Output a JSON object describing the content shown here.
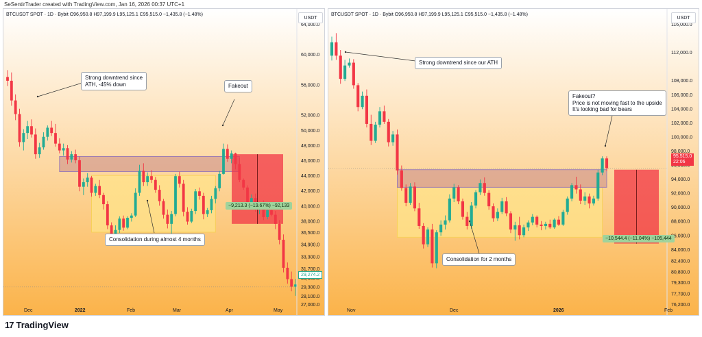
{
  "credit": "SeSentirTrader created with TradingView.com, Jan 16, 2026 00:37 UTC+1",
  "brand": "TradingView",
  "colors": {
    "up": "#22ab94",
    "down": "#f23645",
    "bg_top": "#ffffff",
    "bg_bottom": "#fbb34a",
    "zone": "#c98b8b",
    "consol": "#ffe38a",
    "measure": "#f23645"
  },
  "charts": [
    {
      "symbol_line": "BTCUSDT SPOT · 1D · Bybit  O96,950.8  H97,199.9  L95,125.1  C95,515.0  −1,435.8 (−1.48%)",
      "currency": "USDT",
      "y_ticks": [
        "64,000.0",
        "60,000.0",
        "56,000.0",
        "52,000.0",
        "50,000.0",
        "48,000.0",
        "46,000.0",
        "44,000.0",
        "42,000.0",
        "40,000.0",
        "38,000.0",
        "36,500.0",
        "34,900.0",
        "33,300.0",
        "31,700.0",
        "30,500.0",
        "29,300.0",
        "28,100.0",
        "27,000.0"
      ],
      "x_ticks": [
        "Dec",
        "2022",
        "Feb",
        "Mar",
        "Apr",
        "May"
      ],
      "annotations": {
        "downtrend": "Strong downtrend since\nATH, -45% down",
        "fakeout": "Fakeout",
        "consolidation": "Consolidation during almost 4 months"
      },
      "measure_label": "−9,213.3 (−19.67%) −92,133",
      "last_price": "29,274.2"
    },
    {
      "symbol_line": "BTCUSDT SPOT · 1D · Bybit  O96,950.8  H97,199.9  L95,125.1  C95,515.0  −1,435.8 (−1.48%)",
      "currency": "USDT",
      "y_ticks": [
        "116,000.0",
        "112,000.0",
        "108,000.0",
        "106,000.0",
        "104,000.0",
        "102,000.0",
        "100,000.0",
        "98,000.0",
        "96,000.0",
        "94,000.0",
        "92,000.0",
        "90,000.0",
        "88,000.0",
        "86,000.0",
        "84,000.0",
        "82,400.0",
        "80,800.0",
        "79,300.0",
        "77,700.0",
        "76,200.0"
      ],
      "x_ticks": [
        "Nov",
        "Dec",
        "2026",
        "Feb"
      ],
      "annotations": {
        "downtrend": "Strong downtrend since our ATH",
        "fakeout": "Fakeout?\nPrice is not moving fast to the upside\nIt's looking bad for bears",
        "consolidation": "Consolidation for 2 months"
      },
      "measure_label": "−10,544.4 (−11.04%) −105,444",
      "last_price": "95,515.0",
      "countdown": "22:06"
    }
  ],
  "chart_data": [
    {
      "type": "candlestick",
      "title": "BTCUSDT SPOT · 1D · Bybit",
      "x_ticks": [
        "Dec",
        "2022",
        "Feb",
        "Mar",
        "Apr",
        "May"
      ],
      "ylim": [
        27000,
        64000
      ],
      "candles": [
        [
          57000,
          57900,
          55800,
          56500
        ],
        [
          56500,
          57600,
          53200,
          53900
        ],
        [
          53900,
          54700,
          51300,
          52100
        ],
        [
          52100,
          52800,
          47800,
          48400
        ],
        [
          48400,
          50100,
          47300,
          49600
        ],
        [
          49600,
          51200,
          48800,
          50500
        ],
        [
          50500,
          51400,
          49000,
          49400
        ],
        [
          49400,
          50200,
          46200,
          46800
        ],
        [
          46800,
          48300,
          46300,
          47700
        ],
        [
          47700,
          49700,
          47400,
          49100
        ],
        [
          49100,
          50600,
          48600,
          50300
        ],
        [
          50300,
          51200,
          49200,
          49600
        ],
        [
          49600,
          50800,
          47800,
          48200
        ],
        [
          48200,
          48900,
          46900,
          47300
        ],
        [
          47300,
          48200,
          46600,
          47600
        ],
        [
          47600,
          48000,
          45500,
          46100
        ],
        [
          46100,
          47200,
          45700,
          46800
        ],
        [
          46800,
          47400,
          45600,
          46000
        ],
        [
          46000,
          46500,
          41900,
          42500
        ],
        [
          42500,
          43600,
          41400,
          43100
        ],
        [
          43100,
          44300,
          42500,
          43700
        ],
        [
          43700,
          43900,
          41200,
          41700
        ],
        [
          41700,
          42900,
          41300,
          42600
        ],
        [
          42600,
          43400,
          41000,
          41400
        ],
        [
          41400,
          41700,
          39500,
          40200
        ],
        [
          40200,
          40600,
          36900,
          37400
        ],
        [
          37400,
          37800,
          34900,
          35600
        ],
        [
          35600,
          37400,
          35100,
          36800
        ],
        [
          36800,
          38600,
          36400,
          38300
        ],
        [
          38300,
          38700,
          36700,
          37100
        ],
        [
          37100,
          38600,
          36900,
          38400
        ],
        [
          38400,
          39000,
          37900,
          38700
        ],
        [
          38700,
          42300,
          38500,
          41700
        ],
        [
          41700,
          45400,
          41300,
          44600
        ],
        [
          44600,
          45600,
          42600,
          43100
        ],
        [
          43100,
          44400,
          42600,
          43900
        ],
        [
          43900,
          44700,
          43000,
          43400
        ],
        [
          43400,
          43800,
          41700,
          42100
        ],
        [
          42100,
          42700,
          40000,
          40600
        ],
        [
          40600,
          40900,
          38300,
          38800
        ],
        [
          38800,
          39500,
          37000,
          37600
        ],
        [
          37600,
          39300,
          34900,
          38900
        ],
        [
          38900,
          44200,
          38600,
          43900
        ],
        [
          43900,
          44500,
          42400,
          42900
        ],
        [
          42900,
          43400,
          38600,
          39200
        ],
        [
          39200,
          39800,
          37500,
          37900
        ],
        [
          37900,
          39600,
          37700,
          39300
        ],
        [
          39300,
          42200,
          38900,
          41900
        ],
        [
          41900,
          42400,
          40800,
          41300
        ],
        [
          41300,
          41700,
          38200,
          38900
        ],
        [
          38900,
          39700,
          38500,
          39400
        ],
        [
          39400,
          41300,
          39000,
          40900
        ],
        [
          40900,
          42600,
          40300,
          42300
        ],
        [
          42300,
          44600,
          41900,
          44200
        ],
        [
          44200,
          48200,
          44100,
          47500
        ],
        [
          47500,
          48100,
          45800,
          46200
        ],
        [
          46200,
          47300,
          45600,
          46900
        ],
        [
          46900,
          47000,
          44800,
          45500
        ],
        [
          45500,
          46300,
          43100,
          43400
        ],
        [
          43400,
          43600,
          42100,
          42400
        ],
        [
          42400,
          42700,
          39500,
          40100
        ],
        [
          40100,
          41500,
          39600,
          41000
        ],
        [
          41000,
          41600,
          39200,
          39700
        ],
        [
          39700,
          40400,
          38900,
          40100
        ],
        [
          40100,
          40700,
          38100,
          38500
        ],
        [
          38500,
          39800,
          38200,
          39400
        ],
        [
          39400,
          40200,
          38600,
          38800
        ],
        [
          38800,
          39300,
          36900,
          37600
        ],
        [
          37600,
          38100,
          34900,
          35500
        ],
        [
          35500,
          36200,
          31200,
          31800
        ],
        [
          31800,
          32500,
          29700,
          30300
        ],
        [
          30300,
          31300,
          28700,
          29300
        ],
        [
          29300,
          30300,
          28100,
          29600
        ]
      ],
      "zone": [
        44500,
        46500
      ],
      "consolidation": [
        36500,
        44000
      ],
      "measure": {
        "from": 46800,
        "to": 37600,
        "label": "−9,213.3 (−19.67%) −92,133"
      },
      "last_price": 29274.2
    },
    {
      "type": "candlestick",
      "title": "BTCUSDT SPOT · 1D · Bybit",
      "x_ticks": [
        "Nov",
        "Dec",
        "2026",
        "Feb"
      ],
      "ylim": [
        76200,
        116000
      ],
      "candles": [
        [
          111500,
          114200,
          110800,
          113400
        ],
        [
          113400,
          114700,
          110900,
          111500
        ],
        [
          111500,
          112300,
          107500,
          108200
        ],
        [
          108200,
          110900,
          107900,
          110100
        ],
        [
          110100,
          111100,
          109800,
          110500
        ],
        [
          110500,
          111000,
          106800,
          107300
        ],
        [
          107300,
          107600,
          103600,
          104200
        ],
        [
          104200,
          106400,
          103900,
          105800
        ],
        [
          105800,
          106700,
          101300,
          101800
        ],
        [
          101800,
          103100,
          98800,
          99400
        ],
        [
          99400,
          102100,
          99100,
          101700
        ],
        [
          101700,
          104200,
          101300,
          103600
        ],
        [
          103600,
          104400,
          101800,
          102100
        ],
        [
          102100,
          102500,
          98600,
          99200
        ],
        [
          99200,
          100800,
          98700,
          100300
        ],
        [
          100300,
          101000,
          94600,
          95200
        ],
        [
          95200,
          95900,
          92300,
          92700
        ],
        [
          92700,
          93200,
          90100,
          90600
        ],
        [
          90600,
          93400,
          90300,
          92900
        ],
        [
          92900,
          93500,
          89400,
          89800
        ],
        [
          89800,
          90600,
          86900,
          87300
        ],
        [
          87300,
          87700,
          84100,
          84700
        ],
        [
          84700,
          87100,
          84300,
          86800
        ],
        [
          86800,
          87600,
          81400,
          82000
        ],
        [
          82000,
          86700,
          81300,
          86400
        ],
        [
          86400,
          88100,
          85900,
          87500
        ],
        [
          87500,
          88800,
          86800,
          88100
        ],
        [
          88100,
          91800,
          87800,
          91200
        ],
        [
          91200,
          93300,
          90700,
          92800
        ],
        [
          92800,
          93100,
          90400,
          90800
        ],
        [
          90800,
          91200,
          88200,
          88600
        ],
        [
          88600,
          89300,
          86800,
          87300
        ],
        [
          87300,
          90700,
          86900,
          90200
        ],
        [
          90200,
          92400,
          89800,
          92100
        ],
        [
          92100,
          93900,
          91700,
          93400
        ],
        [
          93400,
          94200,
          91600,
          92000
        ],
        [
          92000,
          92400,
          89600,
          90100
        ],
        [
          90100,
          90500,
          87900,
          88400
        ],
        [
          88400,
          89800,
          88000,
          89300
        ],
        [
          89300,
          91300,
          89000,
          90800
        ],
        [
          90800,
          91400,
          88700,
          89100
        ],
        [
          89100,
          89400,
          86300,
          86800
        ],
        [
          86800,
          87900,
          85200,
          87400
        ],
        [
          87400,
          88600,
          85400,
          86000
        ],
        [
          86000,
          87500,
          85700,
          87100
        ],
        [
          87100,
          88100,
          86600,
          87800
        ],
        [
          87800,
          89000,
          87400,
          88600
        ],
        [
          88600,
          88800,
          87100,
          87500
        ],
        [
          87500,
          88000,
          86700,
          87300
        ],
        [
          87300,
          87900,
          86800,
          87600
        ],
        [
          87600,
          88200,
          86900,
          87100
        ],
        [
          87100,
          88400,
          86900,
          88200
        ],
        [
          88200,
          88700,
          87300,
          87500
        ],
        [
          87500,
          89600,
          87300,
          89300
        ],
        [
          89300,
          91500,
          88900,
          91200
        ],
        [
          91200,
          93400,
          90800,
          93100
        ],
        [
          93100,
          94300,
          91900,
          92500
        ],
        [
          92500,
          93200,
          90400,
          90900
        ],
        [
          90900,
          92100,
          90300,
          91500
        ],
        [
          91500,
          91900,
          89800,
          90500
        ],
        [
          90500,
          91600,
          90200,
          91200
        ],
        [
          91200,
          95300,
          90900,
          94900
        ],
        [
          94900,
          97200,
          94500,
          96900
        ],
        [
          96900,
          97200,
          95100,
          95500
        ]
      ],
      "zone": [
        92800,
        95300
      ],
      "consolidation": [
        85700,
        92800
      ],
      "measure": {
        "from": 95300,
        "to": 84800,
        "label": "−10,544.4 (−11.04%) −105,444"
      },
      "last_price": 95515.0
    }
  ]
}
